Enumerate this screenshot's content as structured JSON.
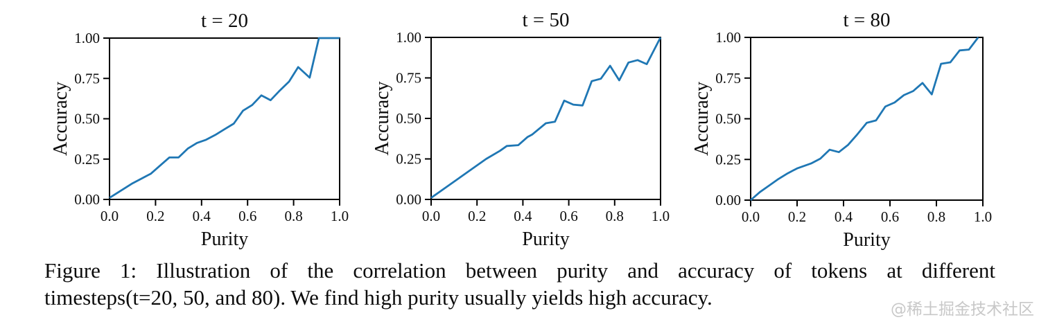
{
  "figure": {
    "caption_line1": "Figure 1: Illustration of the correlation between purity and accuracy of tokens at different",
    "caption_line2": "timesteps(t=20, 50, and 80). We find high purity usually yields high accuracy.",
    "watermark": "@稀土掘金技术社区"
  },
  "colors": {
    "line": "#1f77b4",
    "axis": "#000000",
    "text": "#0d0d0d",
    "watermark": "#c8c8c8",
    "background": "#ffffff"
  },
  "chart_data": [
    {
      "type": "line",
      "id": "t20",
      "title": "t = 20",
      "xlabel": "Purity",
      "ylabel": "Accuracy",
      "xlim": [
        0.0,
        1.0
      ],
      "ylim": [
        0.0,
        1.0
      ],
      "grid": false,
      "legend": false,
      "xticks": [
        "0.0",
        "0.2",
        "0.4",
        "0.6",
        "0.8",
        "1.0"
      ],
      "yticks": [
        "0.00",
        "0.25",
        "0.50",
        "0.75",
        "1.00"
      ],
      "x": [
        0.0,
        0.05,
        0.1,
        0.14,
        0.18,
        0.22,
        0.26,
        0.3,
        0.34,
        0.38,
        0.42,
        0.46,
        0.5,
        0.54,
        0.58,
        0.62,
        0.66,
        0.7,
        0.74,
        0.78,
        0.82,
        0.87,
        0.91,
        1.0
      ],
      "y": [
        0.01,
        0.055,
        0.1,
        0.13,
        0.16,
        0.21,
        0.26,
        0.26,
        0.315,
        0.35,
        0.37,
        0.4,
        0.435,
        0.47,
        0.55,
        0.585,
        0.645,
        0.615,
        0.675,
        0.73,
        0.82,
        0.755,
        1.0,
        1.0
      ]
    },
    {
      "type": "line",
      "id": "t50",
      "title": "t = 50",
      "xlabel": "Purity",
      "ylabel": "Accuracy",
      "xlim": [
        0.0,
        1.0
      ],
      "ylim": [
        0.0,
        1.0
      ],
      "grid": false,
      "legend": false,
      "xticks": [
        "0.0",
        "0.2",
        "0.4",
        "0.6",
        "0.8",
        "1.0"
      ],
      "yticks": [
        "0.00",
        "0.25",
        "0.50",
        "0.75",
        "1.00"
      ],
      "x": [
        0.0,
        0.06,
        0.12,
        0.18,
        0.24,
        0.3,
        0.33,
        0.38,
        0.42,
        0.44,
        0.5,
        0.54,
        0.58,
        0.62,
        0.66,
        0.7,
        0.74,
        0.78,
        0.82,
        0.86,
        0.9,
        0.94,
        1.0
      ],
      "y": [
        0.01,
        0.07,
        0.13,
        0.19,
        0.25,
        0.3,
        0.33,
        0.335,
        0.385,
        0.4,
        0.47,
        0.48,
        0.61,
        0.585,
        0.58,
        0.73,
        0.745,
        0.825,
        0.735,
        0.845,
        0.86,
        0.835,
        1.0
      ]
    },
    {
      "type": "line",
      "id": "t80",
      "title": "t = 80",
      "xlabel": "Purity",
      "ylabel": "Accuracy",
      "xlim": [
        0.0,
        1.0
      ],
      "ylim": [
        0.0,
        1.0
      ],
      "grid": false,
      "legend": false,
      "xticks": [
        "0.0",
        "0.2",
        "0.4",
        "0.6",
        "0.8",
        "1.0"
      ],
      "yticks": [
        "0.00",
        "0.25",
        "0.50",
        "0.75",
        "1.00"
      ],
      "x": [
        0.0,
        0.04,
        0.08,
        0.12,
        0.16,
        0.2,
        0.26,
        0.3,
        0.34,
        0.38,
        0.42,
        0.46,
        0.5,
        0.54,
        0.58,
        0.62,
        0.66,
        0.7,
        0.74,
        0.78,
        0.82,
        0.86,
        0.9,
        0.94,
        0.98
      ],
      "y": [
        0.0,
        0.05,
        0.09,
        0.13,
        0.165,
        0.195,
        0.225,
        0.255,
        0.31,
        0.295,
        0.34,
        0.405,
        0.475,
        0.49,
        0.575,
        0.6,
        0.645,
        0.67,
        0.72,
        0.65,
        0.838,
        0.847,
        0.92,
        0.925,
        1.0
      ]
    }
  ]
}
